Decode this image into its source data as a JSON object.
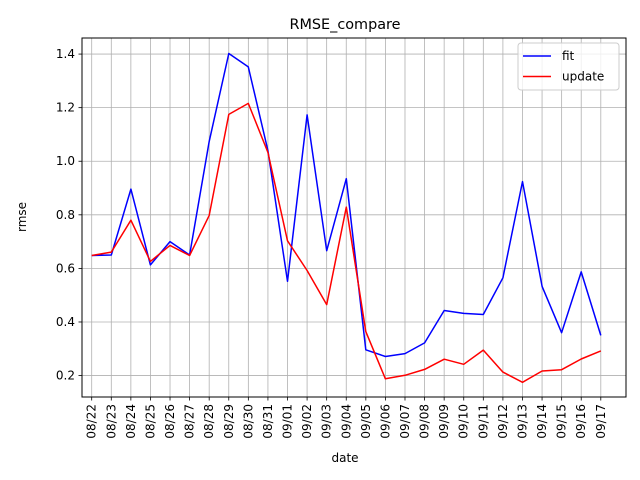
{
  "chart_data": {
    "type": "line",
    "title": "RMSE_compare",
    "xlabel": "date",
    "ylabel": "rmse",
    "categories": [
      "08/22",
      "08/23",
      "08/24",
      "08/25",
      "08/26",
      "08/27",
      "08/28",
      "08/29",
      "08/30",
      "08/31",
      "09/01",
      "09/02",
      "09/03",
      "09/04",
      "09/05",
      "09/06",
      "09/07",
      "09/08",
      "09/09",
      "09/10",
      "09/11",
      "09/12",
      "09/13",
      "09/14",
      "09/15",
      "09/16",
      "09/17"
    ],
    "ylim": [
      0.12,
      1.46
    ],
    "yticks": [
      0.2,
      0.4,
      0.6,
      0.8,
      1.0,
      1.2,
      1.4
    ],
    "ytick_labels": [
      "0.2",
      "0.4",
      "0.6",
      "0.8",
      "1.0",
      "1.2",
      "1.4"
    ],
    "grid": true,
    "legend_position": "top-right",
    "series": [
      {
        "name": "fit",
        "color": "#0000ff",
        "values": [
          0.648,
          0.65,
          0.896,
          0.613,
          0.7,
          0.65,
          1.074,
          1.402,
          1.352,
          1.04,
          0.552,
          1.173,
          0.666,
          0.935,
          0.296,
          0.271,
          0.282,
          0.322,
          0.443,
          0.432,
          0.428,
          0.565,
          0.924,
          0.533,
          0.36,
          0.587,
          0.35
        ]
      },
      {
        "name": "update",
        "color": "#ff0000",
        "values": [
          0.648,
          0.661,
          0.78,
          0.626,
          0.686,
          0.648,
          0.798,
          1.175,
          1.216,
          1.033,
          0.703,
          0.592,
          0.465,
          0.829,
          0.364,
          0.188,
          0.201,
          0.223,
          0.261,
          0.242,
          0.295,
          0.213,
          0.175,
          0.217,
          0.222,
          0.262,
          0.292
        ]
      }
    ]
  }
}
